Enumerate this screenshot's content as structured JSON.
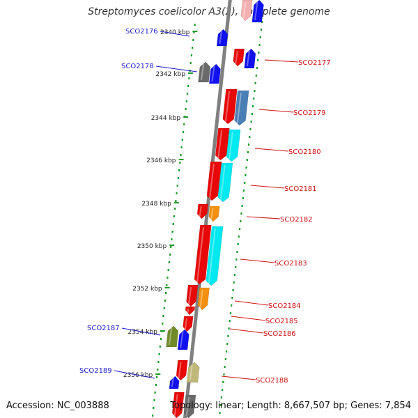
{
  "title": "Streptomyces coelicolor A3(2), complete genome",
  "accession": "Accession: NC_003888",
  "summary": "Topology: linear; Length: 8,667,507 bp; Genes: 7,854",
  "ruler_ticks": [
    "2340 kbp",
    "2342 kbp",
    "2344 kbp",
    "2346 kbp",
    "2348 kbp",
    "2350 kbp",
    "2352 kbp",
    "2354 kbp",
    "2356 kbp"
  ],
  "colors": {
    "axis": "#808080",
    "ruler_dots": "#1e9a2a",
    "label_forward": "#1a1acc",
    "label_reverse": "#d01010",
    "red": "#e80808",
    "blue": "#1010f0",
    "cyan": "#00e8f0",
    "orange": "#f39010",
    "steel": "#4a7fb5",
    "gray": "#6a6a6a",
    "olive": "#708a2a",
    "khaki": "#c0b878",
    "pink": "#f4b0b0"
  },
  "genes": [
    {
      "id": "top-pink",
      "label": "",
      "strand": "reverse",
      "color": "pink",
      "top": 0,
      "bottom": 30
    },
    {
      "id": "top-blue",
      "label": "",
      "strand": "forward",
      "color": "blue",
      "top": 0,
      "bottom": 32
    },
    {
      "id": "SCO2176",
      "label": "SCO2176",
      "strand": "forward",
      "color": "blue",
      "top": 42,
      "bottom": 66
    },
    {
      "id": "SCO2177a",
      "label": "",
      "strand": "reverse",
      "color": "red",
      "top": 70,
      "bottom": 95
    },
    {
      "id": "SCO2177",
      "label": "SCO2177",
      "strand": "forward",
      "color": "blue",
      "top": 70,
      "bottom": 98
    },
    {
      "id": "SCO2178g",
      "label": "",
      "strand": "forward",
      "color": "gray",
      "top": 89,
      "bottom": 118
    },
    {
      "id": "SCO2178",
      "label": "SCO2178",
      "strand": "forward",
      "color": "blue",
      "top": 92,
      "bottom": 120
    },
    {
      "id": "SCO2179r",
      "label": "",
      "strand": "reverse",
      "color": "red",
      "top": 128,
      "bottom": 178
    },
    {
      "id": "SCO2179",
      "label": "SCO2179",
      "strand": "reverse",
      "color": "steel",
      "top": 130,
      "bottom": 180
    },
    {
      "id": "SCO2180r",
      "label": "",
      "strand": "reverse",
      "color": "red",
      "top": 184,
      "bottom": 230
    },
    {
      "id": "SCO2180",
      "label": "SCO2180",
      "strand": "reverse",
      "color": "cyan",
      "top": 186,
      "bottom": 232
    },
    {
      "id": "SCO2181r",
      "label": "",
      "strand": "reverse",
      "color": "red",
      "top": 232,
      "bottom": 288
    },
    {
      "id": "SCO2181",
      "label": "SCO2181",
      "strand": "reverse",
      "color": "cyan",
      "top": 234,
      "bottom": 290
    },
    {
      "id": "SCO2182r",
      "label": "",
      "strand": "reverse",
      "color": "red",
      "top": 293,
      "bottom": 314
    },
    {
      "id": "SCO2182",
      "label": "SCO2182",
      "strand": "reverse",
      "color": "orange",
      "top": 296,
      "bottom": 318
    },
    {
      "id": "SCO2183r",
      "label": "",
      "strand": "reverse",
      "color": "red",
      "top": 323,
      "bottom": 408
    },
    {
      "id": "SCO2183",
      "label": "SCO2183",
      "strand": "reverse",
      "color": "cyan",
      "top": 325,
      "bottom": 410
    },
    {
      "id": "SCO2184r",
      "label": "",
      "strand": "reverse",
      "color": "red",
      "top": 409,
      "bottom": 440
    },
    {
      "id": "SCO2184",
      "label": "SCO2184",
      "strand": "reverse",
      "color": "orange",
      "top": 413,
      "bottom": 445
    },
    {
      "id": "SCO2185",
      "label": "SCO2185",
      "strand": "reverse",
      "color": "red",
      "top": 440,
      "bottom": 452
    },
    {
      "id": "SCO2186",
      "label": "SCO2186",
      "strand": "reverse",
      "color": "red",
      "top": 454,
      "bottom": 476
    },
    {
      "id": "SCO2187o",
      "label": "",
      "strand": "forward",
      "color": "olive",
      "top": 468,
      "bottom": 498
    },
    {
      "id": "SCO2187",
      "label": "SCO2187",
      "strand": "forward",
      "color": "blue",
      "top": 473,
      "bottom": 502
    },
    {
      "id": "SCO2188r",
      "label": "",
      "strand": "reverse",
      "color": "red",
      "top": 517,
      "bottom": 546
    },
    {
      "id": "SCO2188",
      "label": "SCO2188",
      "strand": "forward",
      "color": "khaki",
      "top": 520,
      "bottom": 549
    },
    {
      "id": "SCO2189",
      "label": "SCO2189",
      "strand": "forward",
      "color": "blue",
      "top": 540,
      "bottom": 558
    },
    {
      "id": "bottom-red",
      "label": "",
      "strand": "reverse",
      "color": "red",
      "top": 563,
      "bottom": 600
    },
    {
      "id": "bottom-gray",
      "label": "",
      "strand": "reverse",
      "color": "gray",
      "top": 567,
      "bottom": 600
    }
  ]
}
